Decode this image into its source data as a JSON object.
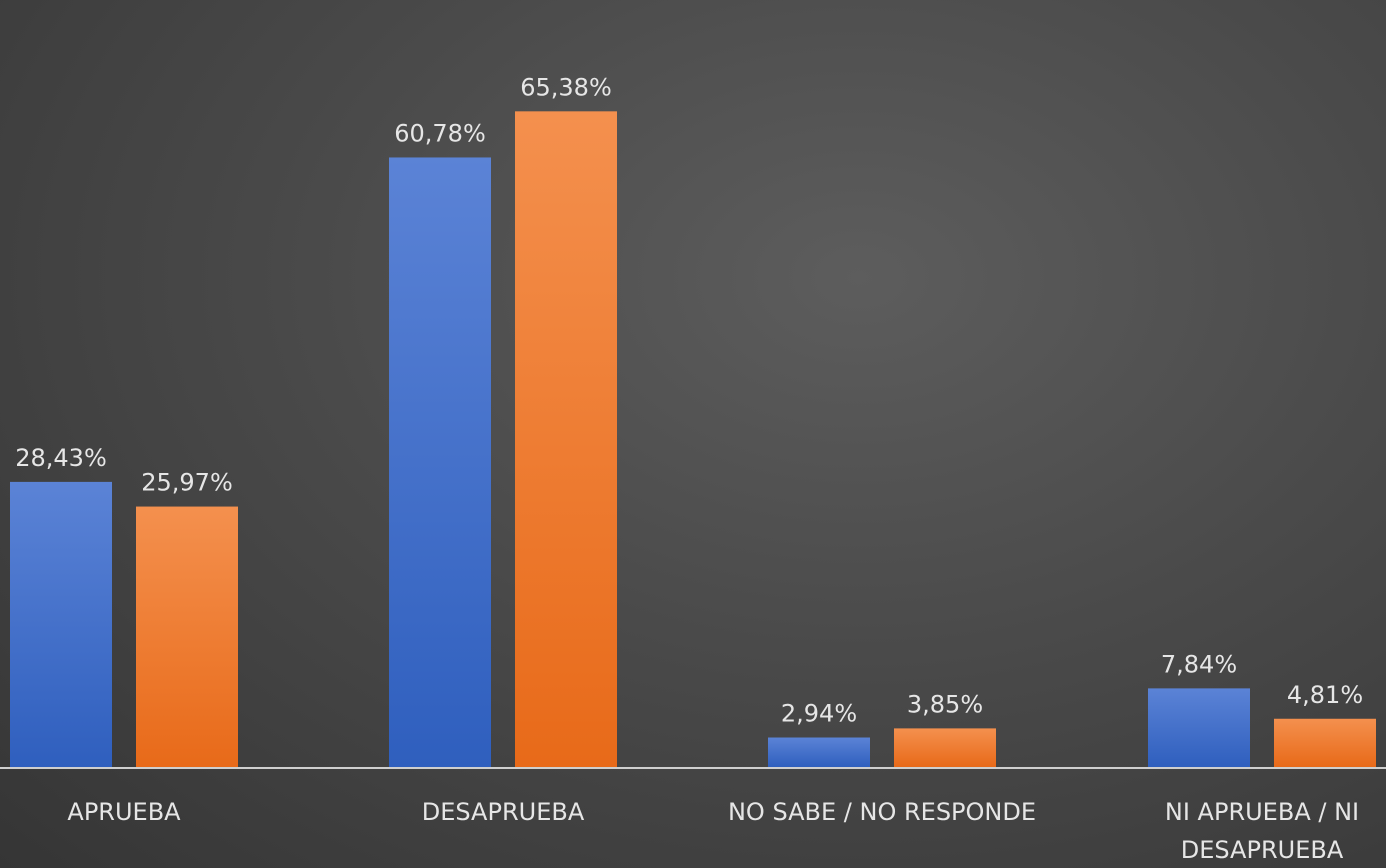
{
  "chart_data": {
    "type": "bar",
    "categories": [
      [
        "APRUEBA"
      ],
      [
        "DESAPRUEBA"
      ],
      [
        "NO SABE / NO RESPONDE"
      ],
      [
        "NI APRUEBA / NI",
        "DESAPRUEBA"
      ]
    ],
    "series": [
      {
        "values": [
          28.43,
          60.78,
          2.94,
          7.84
        ],
        "labels": [
          "28,43%",
          "60,78%",
          "2,94%",
          "7,84%"
        ],
        "color_top": "#5b83d6",
        "color_bottom": "#2f5fbe"
      },
      {
        "values": [
          25.97,
          65.38,
          3.85,
          4.81
        ],
        "labels": [
          "25,97%",
          "65,38%",
          "3,85%",
          "4,81%"
        ],
        "color_top": "#f4904e",
        "color_bottom": "#e86a19"
      }
    ],
    "ylim": [
      0,
      70
    ],
    "grid": false,
    "legend": "none",
    "axis_color": "#cfcfcf",
    "text_color": "#e6e6e6"
  }
}
